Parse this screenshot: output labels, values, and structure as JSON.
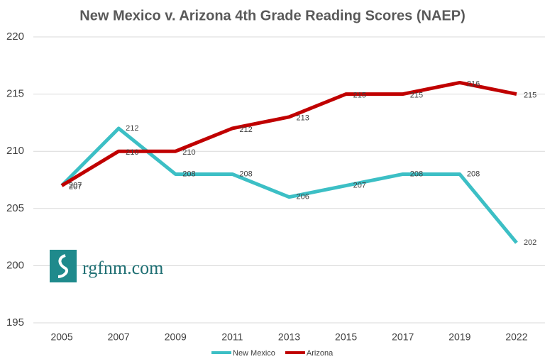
{
  "chart_data": {
    "type": "line",
    "title": "New Mexico v. Arizona 4th Grade Reading Scores (NAEP)",
    "categories": [
      "2005",
      "2007",
      "2009",
      "2011",
      "2013",
      "2015",
      "2017",
      "2019",
      "2022"
    ],
    "series": [
      {
        "name": "New Mexico",
        "color": "#3cbfc5",
        "values": [
          207,
          212,
          208,
          208,
          206,
          207,
          208,
          208,
          202
        ]
      },
      {
        "name": "Arizona",
        "color": "#c00000",
        "values": [
          207,
          210,
          210,
          212,
          213,
          215,
          215,
          216,
          215
        ]
      }
    ],
    "ylim": [
      195,
      220
    ],
    "yticks": [
      195,
      200,
      205,
      210,
      215,
      220
    ],
    "grid": true,
    "legend": "bottom",
    "watermark": "rgfnm.com"
  }
}
